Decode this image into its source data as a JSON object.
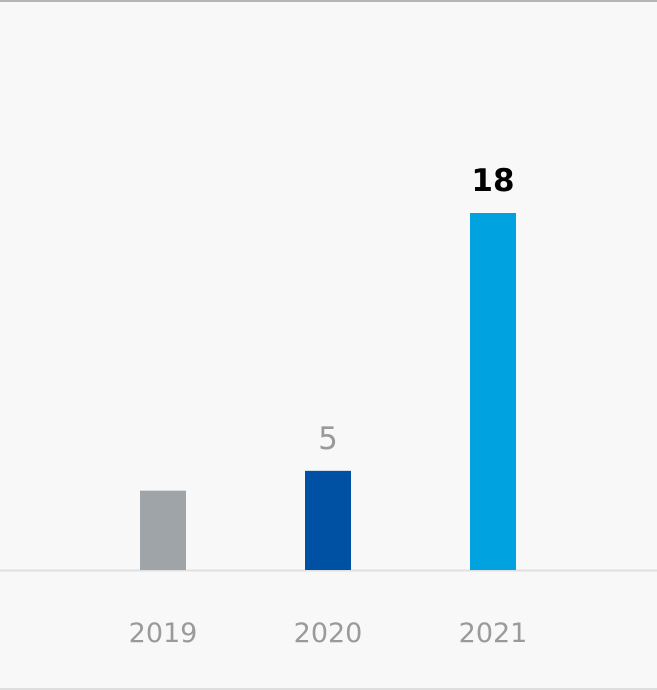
{
  "chart_data": {
    "type": "bar",
    "categories": [
      "2019",
      "2020",
      "2021"
    ],
    "values": [
      4,
      5,
      18
    ],
    "data_labels": [
      "",
      "5",
      "18"
    ],
    "highlight_index": 2,
    "colors": [
      "#9ea4a8",
      "#0050a4",
      "#00a3e0"
    ],
    "label_colors": [
      "#9a9a9a",
      "#9a9a9a",
      "#000000"
    ],
    "label_weights": [
      "normal",
      "normal",
      "bold"
    ],
    "axis_color": "#e0e0e0",
    "title": "",
    "xlabel": "",
    "ylabel": "",
    "ylim": [
      0,
      18
    ],
    "grid": false,
    "legend": false
  }
}
